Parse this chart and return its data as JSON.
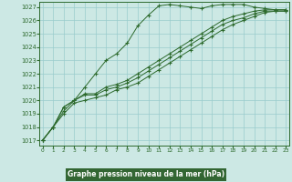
{
  "xlabel": "Graphe pression niveau de la mer (hPa)",
  "background_color": "#cce8e4",
  "grid_color": "#99cccc",
  "line_color": "#2d6a2d",
  "marker_color": "#2d6a2d",
  "spine_color": "#2d6a2d",
  "xlabel_bg": "#336633",
  "xlim": [
    -0.3,
    23.3
  ],
  "ylim": [
    1016.6,
    1027.4
  ],
  "yticks": [
    1017,
    1018,
    1019,
    1020,
    1021,
    1022,
    1023,
    1024,
    1025,
    1026,
    1027
  ],
  "xticks": [
    0,
    1,
    2,
    3,
    4,
    5,
    6,
    7,
    8,
    9,
    10,
    11,
    12,
    13,
    14,
    15,
    16,
    17,
    18,
    19,
    20,
    21,
    22,
    23
  ],
  "series": [
    [
      1017.0,
      1018.0,
      1019.2,
      1020.0,
      1021.0,
      1022.0,
      1023.0,
      1023.5,
      1024.3,
      1025.6,
      1026.4,
      1027.1,
      1027.2,
      1027.1,
      1027.0,
      1026.9,
      1027.1,
      1027.2,
      1027.2,
      1027.2,
      1027.0,
      1026.9,
      1026.8,
      1026.8
    ],
    [
      1017.0,
      1018.0,
      1019.5,
      1020.0,
      1020.5,
      1020.5,
      1021.0,
      1021.2,
      1021.5,
      1022.0,
      1022.5,
      1023.0,
      1023.5,
      1024.0,
      1024.5,
      1025.0,
      1025.5,
      1026.0,
      1026.3,
      1026.5,
      1026.7,
      1026.8,
      1026.8,
      1026.8
    ],
    [
      1017.0,
      1018.0,
      1019.5,
      1020.0,
      1020.4,
      1020.4,
      1020.8,
      1021.0,
      1021.3,
      1021.7,
      1022.2,
      1022.7,
      1023.2,
      1023.7,
      1024.2,
      1024.7,
      1025.2,
      1025.7,
      1026.0,
      1026.2,
      1026.5,
      1026.7,
      1026.7,
      1026.7
    ],
    [
      1017.0,
      1018.0,
      1019.0,
      1019.8,
      1020.0,
      1020.2,
      1020.4,
      1020.8,
      1021.0,
      1021.3,
      1021.8,
      1022.3,
      1022.8,
      1023.3,
      1023.8,
      1024.3,
      1024.8,
      1025.3,
      1025.7,
      1026.0,
      1026.3,
      1026.6,
      1026.7,
      1026.7
    ]
  ]
}
